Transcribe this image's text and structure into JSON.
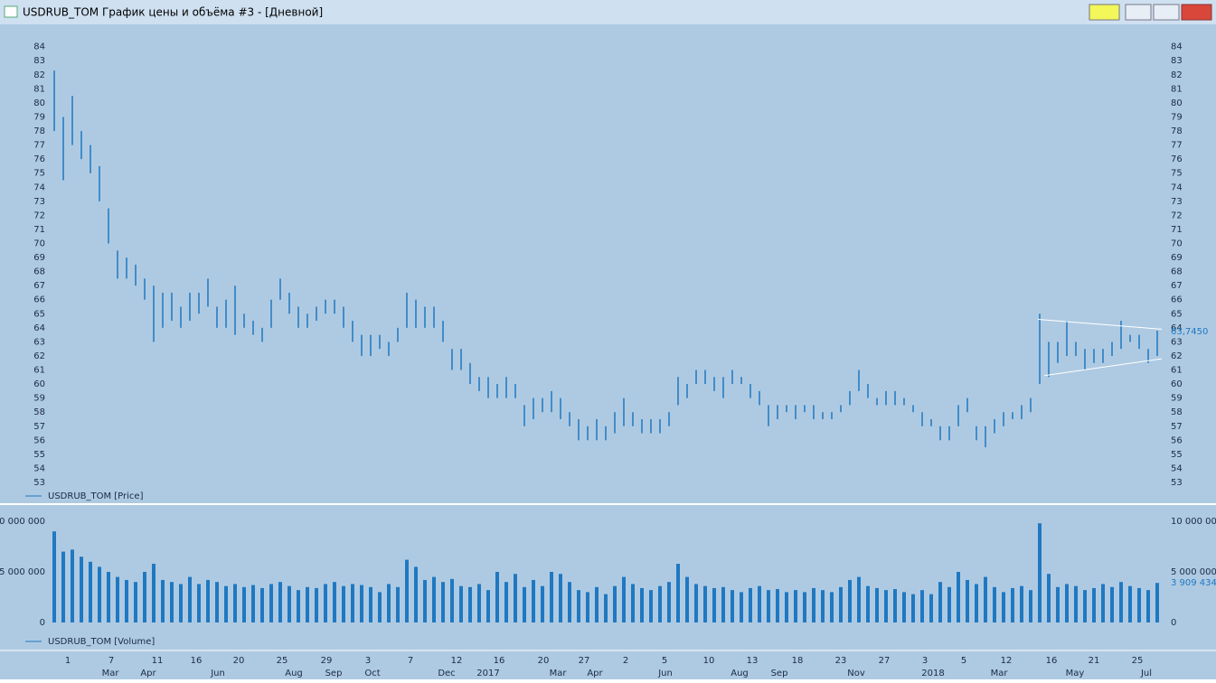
{
  "window": {
    "title": "USDRUB_TOM График цены и объёма #3 - [Дневной]"
  },
  "chart_data": [
    {
      "type": "range",
      "ylim": [
        53,
        84.3
      ],
      "yticks": [
        53,
        54,
        55,
        56,
        57,
        58,
        59,
        60,
        61,
        62,
        63,
        64,
        65,
        66,
        67,
        68,
        69,
        70,
        71,
        72,
        73,
        74,
        75,
        76,
        77,
        78,
        79,
        80,
        81,
        82,
        83,
        84
      ],
      "last_value": {
        "value": 63.745,
        "label": "63,7450"
      },
      "trendlines": [
        {
          "x": [
            108.8,
            122.5
          ],
          "y": [
            64.6,
            63.9
          ]
        },
        {
          "x": [
            109.5,
            122.5
          ],
          "y": [
            60.6,
            61.8
          ]
        }
      ],
      "series": [
        {
          "name": "USDRUB_TOM [Price]",
          "color": "#1f78c1",
          "low": [
            78,
            74.5,
            77,
            76,
            75,
            73,
            70,
            67.5,
            67.5,
            67,
            66,
            63,
            64,
            64.5,
            64,
            64.5,
            65,
            65.5,
            64,
            64,
            63.5,
            64,
            63.5,
            63,
            64,
            66,
            65,
            64,
            64,
            64.5,
            65,
            65,
            64,
            63,
            62,
            62,
            62.5,
            62,
            63,
            64,
            64,
            64,
            64,
            63,
            61,
            61,
            60,
            59.5,
            59,
            59,
            59,
            59,
            57,
            57.5,
            58,
            58,
            57.5,
            57,
            56,
            56,
            56,
            56,
            56.5,
            57,
            57,
            56.5,
            56.5,
            56.5,
            57,
            58.5,
            59,
            60,
            60,
            59.5,
            59,
            60,
            60,
            59,
            58.5,
            57,
            57.5,
            58,
            57.5,
            58,
            57.5,
            57.5,
            57.5,
            58,
            58.5,
            59.5,
            59,
            58.5,
            58.5,
            58.5,
            58.5,
            58,
            57,
            57,
            56,
            56,
            57,
            58,
            56,
            55.5,
            56.5,
            57,
            57.5,
            57.5,
            58,
            60,
            60.5,
            61.5,
            62,
            62,
            61,
            61.5,
            61.5,
            62,
            62.5,
            63,
            62.5,
            61.5,
            62
          ],
          "high": [
            82.3,
            79,
            80.5,
            78,
            77,
            75.5,
            72.5,
            69.5,
            69,
            68.5,
            67.5,
            67,
            66.5,
            66.5,
            65.5,
            66.5,
            66.5,
            67.5,
            65.5,
            66,
            67,
            65,
            64.5,
            64,
            66,
            67.5,
            66.5,
            65.5,
            65,
            65.5,
            66,
            66,
            65.5,
            64.5,
            63.5,
            63.5,
            63.5,
            63,
            64,
            66.5,
            66,
            65.5,
            65.5,
            64.5,
            62.5,
            62.5,
            61.5,
            60.5,
            60.5,
            60,
            60.5,
            60,
            58.5,
            59,
            59,
            59.5,
            59,
            58,
            57.5,
            57,
            57.5,
            57,
            58,
            59,
            58,
            57.5,
            57.5,
            57.5,
            58,
            60.5,
            60,
            61,
            61,
            60.5,
            60.5,
            61,
            60.5,
            60,
            59.5,
            58.5,
            58.5,
            58.5,
            58.5,
            58.5,
            58.5,
            58,
            58,
            58.5,
            59.5,
            61,
            60,
            59,
            59.5,
            59.5,
            59,
            58.5,
            58,
            57.5,
            57,
            57,
            58.5,
            59,
            57,
            57,
            57.5,
            58,
            58,
            58.5,
            59,
            65,
            63,
            63,
            64.5,
            63,
            62.5,
            62.5,
            62.5,
            63,
            64.5,
            63.5,
            63.5,
            62.5,
            63.8
          ]
        }
      ]
    },
    {
      "type": "bar",
      "ylim": [
        0,
        10000000
      ],
      "yticks": [
        0,
        {
          "value": 5000000,
          "label": "5 000 000"
        },
        {
          "value": 10000000,
          "label": "10 000 000"
        }
      ],
      "last_value": {
        "value": 3909434,
        "label": "3 909 434"
      },
      "xticks": [
        {
          "value": 1.5,
          "label": "1"
        },
        {
          "value": 6.3,
          "label": "7"
        },
        {
          "value": 11.4,
          "label": "11"
        },
        {
          "value": 15.7,
          "label": "16"
        },
        {
          "value": 20.4,
          "label": "20"
        },
        {
          "value": 25.2,
          "label": "25"
        },
        {
          "value": 30.1,
          "label": "29"
        },
        {
          "value": 34.7,
          "label": "3"
        },
        {
          "value": 39.4,
          "label": "7"
        },
        {
          "value": 44.5,
          "label": "12"
        },
        {
          "value": 49.2,
          "label": "16"
        },
        {
          "value": 54.1,
          "label": "20"
        },
        {
          "value": 58.6,
          "label": "27"
        },
        {
          "value": 63.2,
          "label": "2"
        },
        {
          "value": 67.5,
          "label": "5"
        },
        {
          "value": 72.4,
          "label": "10"
        },
        {
          "value": 77.2,
          "label": "13"
        },
        {
          "value": 82.2,
          "label": "18"
        },
        {
          "value": 87,
          "label": "23"
        },
        {
          "value": 91.8,
          "label": "27"
        },
        {
          "value": 96.3,
          "label": "3"
        },
        {
          "value": 100.6,
          "label": "5"
        },
        {
          "value": 105.3,
          "label": "12"
        },
        {
          "value": 110.3,
          "label": "16"
        },
        {
          "value": 115,
          "label": "21"
        },
        {
          "value": 119.8,
          "label": "25"
        }
      ],
      "xticks_secondary": [
        {
          "value": 6.2,
          "label": "Mar"
        },
        {
          "value": 10.4,
          "label": "Apr"
        },
        {
          "value": 18.1,
          "label": "Jun"
        },
        {
          "value": 26.5,
          "label": "Aug"
        },
        {
          "value": 30.9,
          "label": "Sep"
        },
        {
          "value": 35.2,
          "label": "Oct"
        },
        {
          "value": 43.4,
          "label": "Dec"
        },
        {
          "value": 48,
          "label": "2017"
        },
        {
          "value": 55.7,
          "label": "Mar"
        },
        {
          "value": 59.8,
          "label": "Apr"
        },
        {
          "value": 67.6,
          "label": "Jun"
        },
        {
          "value": 75.8,
          "label": "Aug"
        },
        {
          "value": 80.2,
          "label": "Sep"
        },
        {
          "value": 88.7,
          "label": "Nov"
        },
        {
          "value": 97.2,
          "label": "2018"
        },
        {
          "value": 104.5,
          "label": "Mar"
        },
        {
          "value": 112.9,
          "label": "May"
        },
        {
          "value": 120.8,
          "label": "Jul"
        }
      ],
      "series": [
        {
          "name": "USDRUB_TOM [Volume]",
          "color": "#1f78c1",
          "values": [
            9000000,
            7000000,
            7200000,
            6500000,
            6000000,
            5500000,
            5000000,
            4500000,
            4200000,
            4000000,
            5000000,
            5800000,
            4200000,
            4000000,
            3800000,
            4500000,
            3800000,
            4200000,
            4000000,
            3600000,
            3800000,
            3500000,
            3700000,
            3400000,
            3800000,
            4000000,
            3600000,
            3200000,
            3500000,
            3400000,
            3800000,
            4000000,
            3600000,
            3800000,
            3700000,
            3500000,
            3000000,
            3800000,
            3500000,
            6200000,
            5500000,
            4200000,
            4500000,
            4000000,
            4300000,
            3600000,
            3500000,
            3800000,
            3200000,
            5000000,
            4000000,
            4800000,
            3500000,
            4200000,
            3600000,
            5000000,
            4800000,
            4000000,
            3200000,
            3000000,
            3500000,
            2800000,
            3600000,
            4500000,
            3800000,
            3400000,
            3200000,
            3600000,
            4000000,
            5800000,
            4500000,
            3800000,
            3600000,
            3400000,
            3500000,
            3200000,
            3000000,
            3400000,
            3600000,
            3200000,
            3300000,
            3000000,
            3200000,
            3000000,
            3400000,
            3200000,
            3000000,
            3500000,
            4200000,
            4500000,
            3600000,
            3400000,
            3200000,
            3300000,
            3000000,
            2800000,
            3200000,
            2800000,
            4000000,
            3500000,
            5000000,
            4200000,
            3800000,
            4500000,
            3500000,
            3000000,
            3400000,
            3600000,
            3200000,
            9800000,
            4800000,
            3500000,
            3800000,
            3600000,
            3200000,
            3400000,
            3800000,
            3500000,
            4000000,
            3600000,
            3400000,
            3200000,
            3909434
          ]
        }
      ]
    }
  ]
}
